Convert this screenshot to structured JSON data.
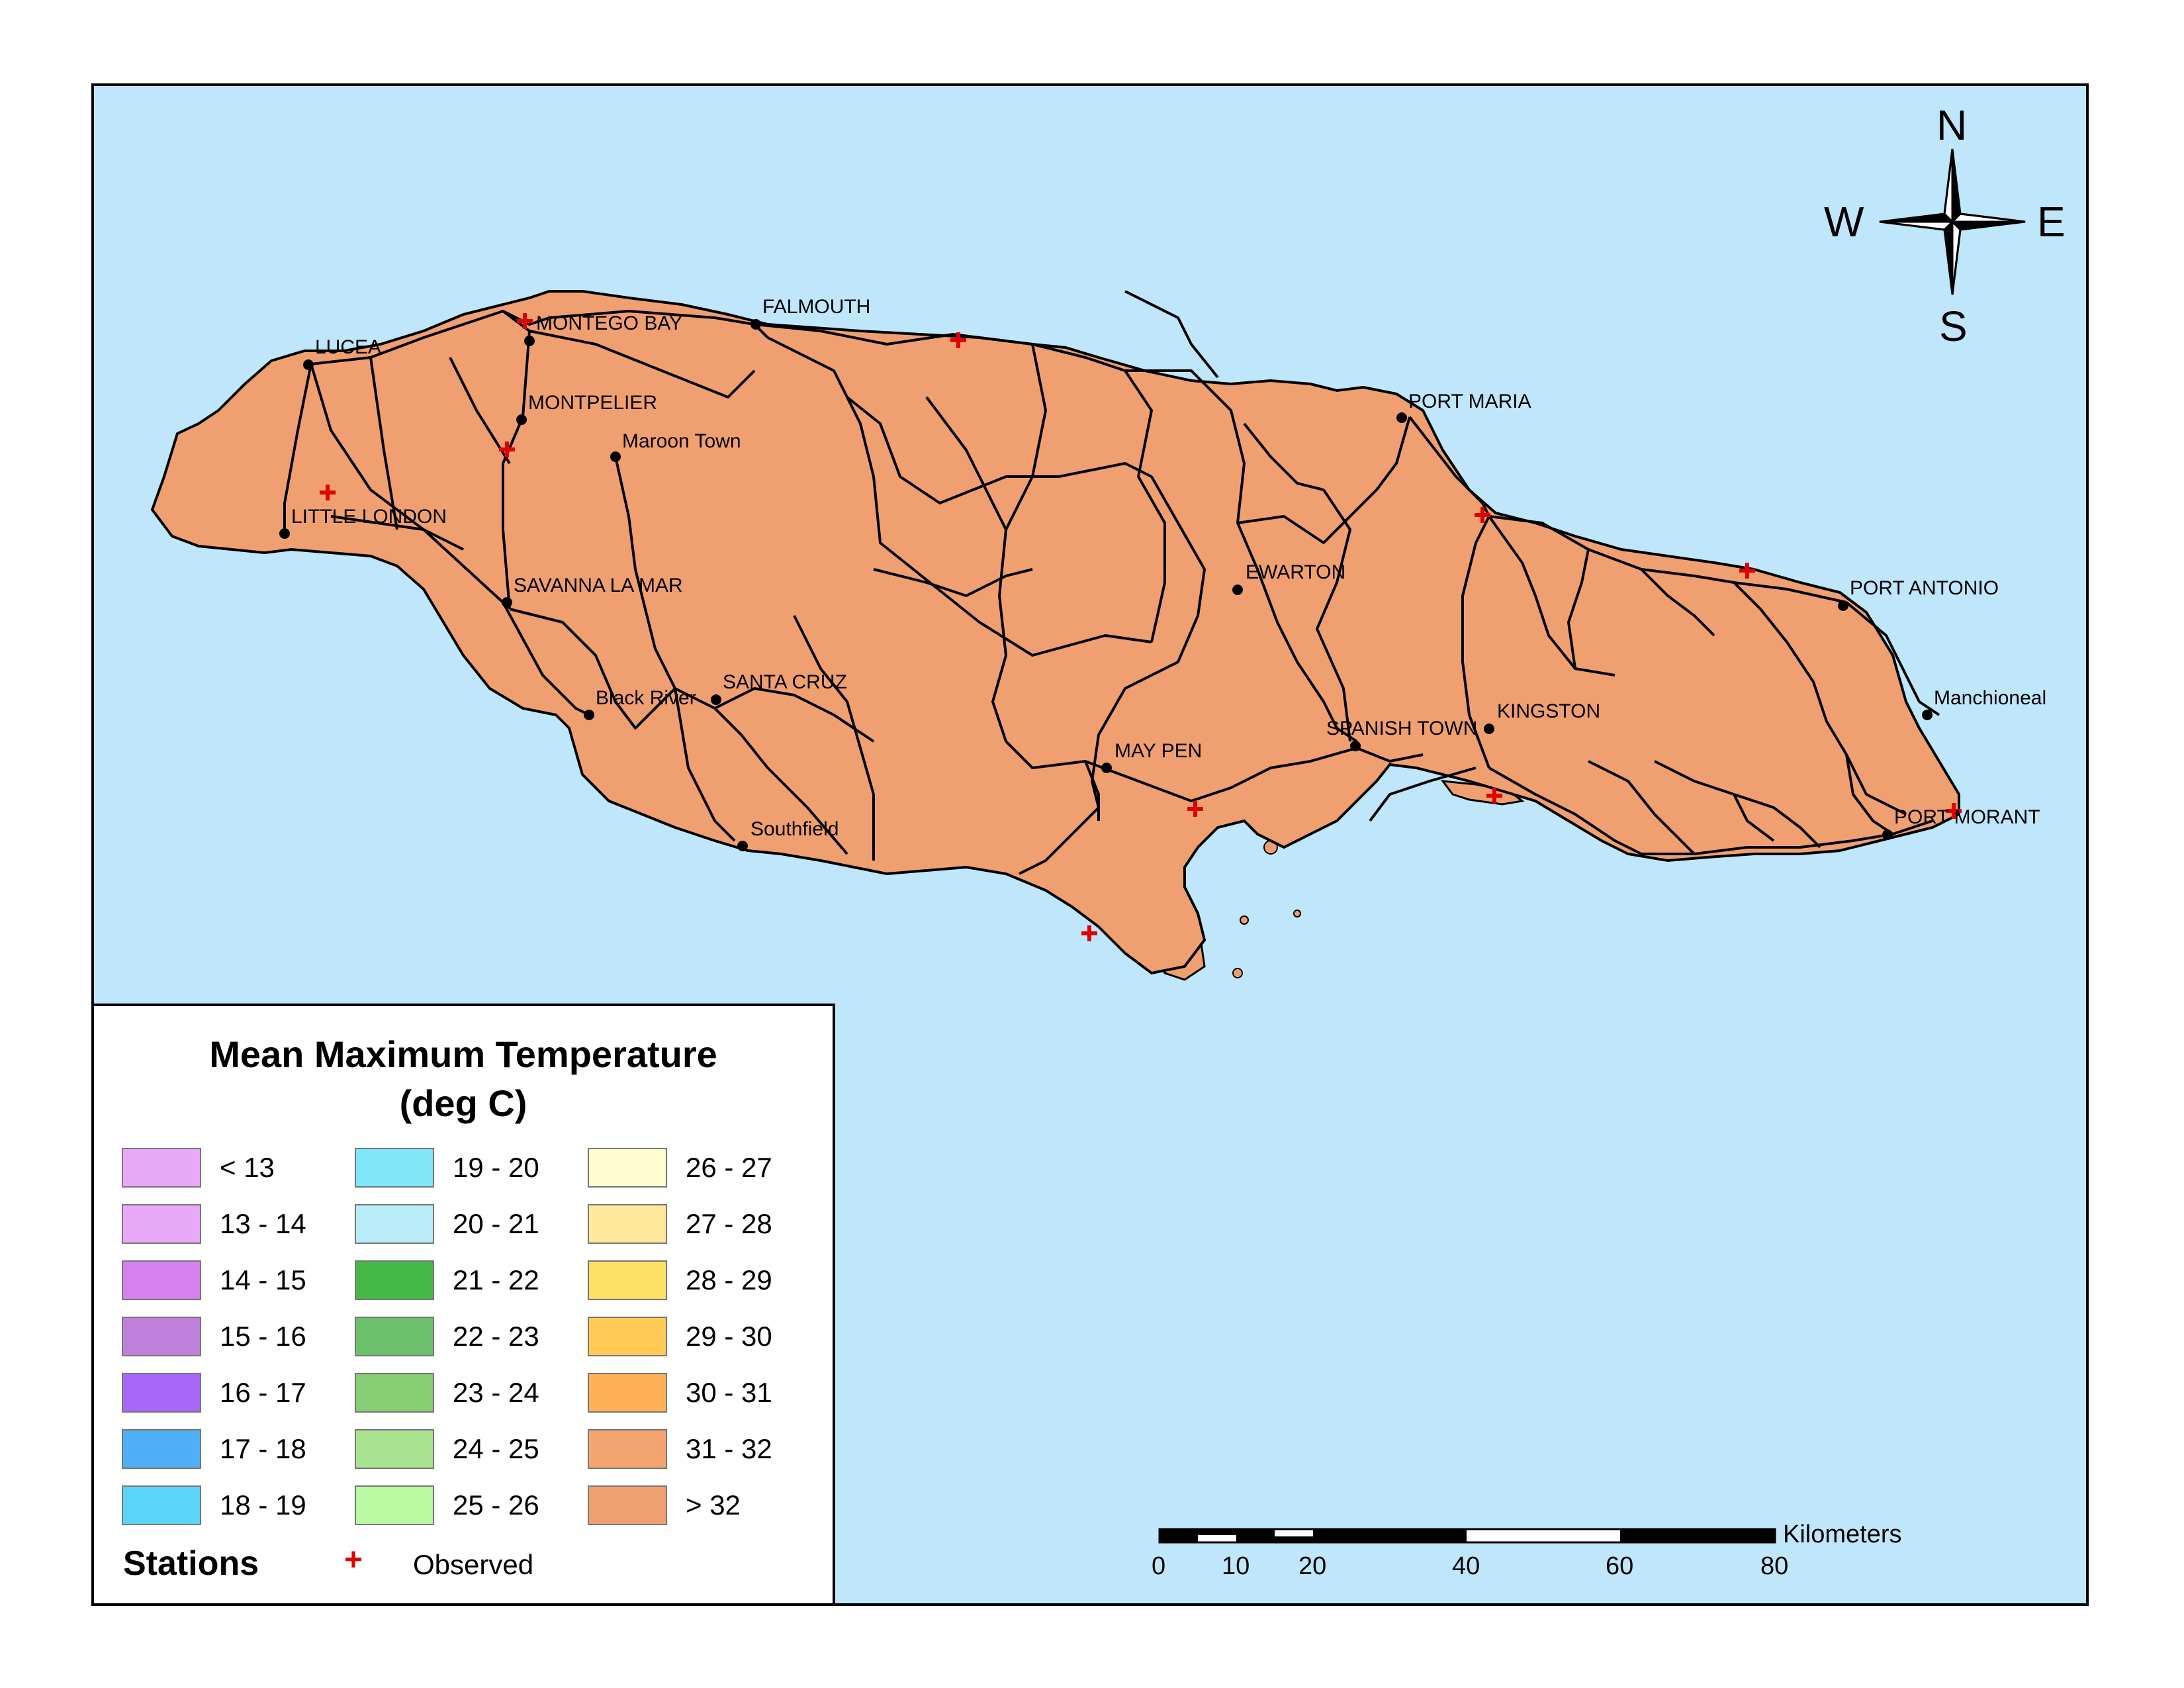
{
  "legend": {
    "title_line1": "Mean Maximum Temperature",
    "title_line2": "(deg C)",
    "classes": [
      {
        "label": "< 13",
        "color": "#e8aaf8"
      },
      {
        "label": "13 - 14",
        "color": "#e8aaf8"
      },
      {
        "label": "14 - 15",
        "color": "#d580ee"
      },
      {
        "label": "15 - 16",
        "color": "#bf80dc"
      },
      {
        "label": "16 - 17",
        "color": "#a768f9"
      },
      {
        "label": "17 - 18",
        "color": "#4fb0f8"
      },
      {
        "label": "18 - 19",
        "color": "#5cd3f8"
      },
      {
        "label": "19 - 20",
        "color": "#80e6fa"
      },
      {
        "label": "20 - 21",
        "color": "#b8ecf9"
      },
      {
        "label": "21 - 22",
        "color": "#46b848"
      },
      {
        "label": "22 - 23",
        "color": "#6cc06c"
      },
      {
        "label": "23 - 24",
        "color": "#88ce74"
      },
      {
        "label": "24 - 25",
        "color": "#a8e490"
      },
      {
        "label": "25 - 26",
        "color": "#baf8a2"
      },
      {
        "label": "26 - 27",
        "color": "#fffdd0"
      },
      {
        "label": "27 - 28",
        "color": "#ffe899"
      },
      {
        "label": "28 - 29",
        "color": "#ffe067"
      },
      {
        "label": "29 - 30",
        "color": "#ffcb55"
      },
      {
        "label": "30 - 31",
        "color": "#ffb157"
      },
      {
        "label": "31 - 32",
        "color": "#f4a570"
      },
      {
        "label": "> 32",
        "color": "#f0a070"
      }
    ],
    "stations_label": "Stations",
    "observed_symbol": "+",
    "observed_label": "Observed"
  },
  "compass": {
    "n": "N",
    "s": "S",
    "e": "E",
    "w": "W"
  },
  "scalebar": {
    "unit": "Kilometers",
    "ticks": [
      "0",
      "10",
      "20",
      "40",
      "60",
      "80"
    ]
  },
  "cities": [
    {
      "name": "LUCEA"
    },
    {
      "name": "MONTEGO BAY"
    },
    {
      "name": "FALMOUTH"
    },
    {
      "name": "MONTPELIER"
    },
    {
      "name": "Maroon Town"
    },
    {
      "name": "LITTLE LONDON"
    },
    {
      "name": "SAVANNA LA MAR"
    },
    {
      "name": "PORT MARIA"
    },
    {
      "name": "EWARTON"
    },
    {
      "name": "PORT ANTONIO"
    },
    {
      "name": "Black River"
    },
    {
      "name": "SANTA CRUZ"
    },
    {
      "name": "KINGSTON"
    },
    {
      "name": "Manchioneal"
    },
    {
      "name": "SPANISH TOWN"
    },
    {
      "name": "MAY PEN"
    },
    {
      "name": "Southfield"
    },
    {
      "name": "PORT MORANT"
    }
  ],
  "colors": {
    "sea": "#bfe6fb",
    "land": "#f0a070",
    "station": "#e00000"
  }
}
